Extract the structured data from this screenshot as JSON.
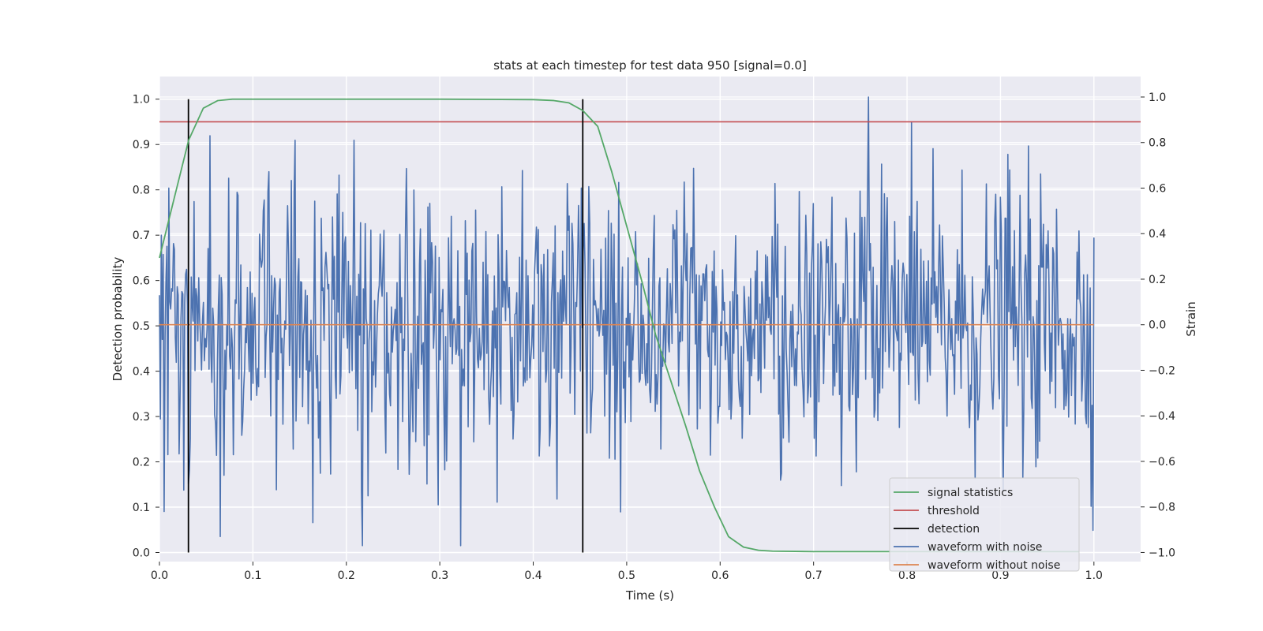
{
  "chart_data": {
    "type": "line",
    "title": "stats at each timestep for test data 950 [signal=0.0]",
    "xlabel": "Time (s)",
    "ylabel": "Detection probability",
    "y2label": "Strain",
    "xlim": [
      0.0,
      1.05
    ],
    "ylim": [
      -0.02,
      1.05
    ],
    "y2lim": [
      -1.04,
      1.09
    ],
    "x_ticks": [
      "0.0",
      "0.1",
      "0.2",
      "0.3",
      "0.4",
      "0.5",
      "0.6",
      "0.7",
      "0.8",
      "0.9",
      "1.0"
    ],
    "y_ticks": [
      "0.0",
      "0.1",
      "0.2",
      "0.3",
      "0.4",
      "0.5",
      "0.6",
      "0.7",
      "0.8",
      "0.9",
      "1.0"
    ],
    "y2_ticks": [
      "−1.0",
      "−0.8",
      "−0.6",
      "−0.4",
      "−0.2",
      "0.0",
      "0.2",
      "0.4",
      "0.6",
      "0.8",
      "1.0"
    ],
    "grid": true,
    "legend_position": "lower-right",
    "threshold": 0.95,
    "detections": [
      0.031,
      0.453
    ],
    "signal_statistics": {
      "x": [
        0.0,
        0.0156,
        0.0313,
        0.0469,
        0.0625,
        0.078,
        0.1,
        0.2,
        0.3,
        0.4,
        0.422,
        0.438,
        0.453,
        0.469,
        0.484,
        0.5,
        0.516,
        0.531,
        0.547,
        0.563,
        0.578,
        0.594,
        0.609,
        0.625,
        0.641,
        0.656,
        0.7,
        0.8,
        0.9,
        0.984
      ],
      "y": [
        0.65,
        0.78,
        0.91,
        0.98,
        0.997,
        1.0,
        1.0,
        1.0,
        1.0,
        0.999,
        0.997,
        0.992,
        0.975,
        0.94,
        0.84,
        0.72,
        0.6,
        0.48,
        0.38,
        0.28,
        0.18,
        0.1,
        0.035,
        0.012,
        0.005,
        0.003,
        0.002,
        0.002,
        0.002,
        0.002
      ]
    },
    "waveform_without_noise": {
      "x": [
        0.0,
        1.0
      ],
      "y": [
        0.0,
        0.0
      ]
    },
    "waveform_with_noise": {
      "x_start": 0.0,
      "x_end": 1.0,
      "points": 1000,
      "std": 0.3,
      "notable": [
        [
          0.005,
          -0.82
        ],
        [
          0.01,
          0.6
        ],
        [
          0.031,
          -0.7
        ],
        [
          0.065,
          -0.93
        ],
        [
          0.145,
          0.81
        ],
        [
          0.208,
          0.81
        ],
        [
          0.451,
          0.6
        ],
        [
          0.759,
          1.0
        ],
        [
          0.72,
          0.56
        ],
        [
          0.91,
          0.68
        ]
      ]
    },
    "legend": [
      "signal statistics",
      "threshold",
      "detection",
      "waveform with noise",
      "waveform without noise"
    ],
    "colors": {
      "signal_statistics": "#55a868",
      "threshold": "#c44e52",
      "detection": "#000000",
      "waveform_with_noise": "#4c72b0",
      "waveform_without_noise": "#dd8452",
      "plot_background": "#eaeaf2",
      "grid": "#ffffff"
    }
  }
}
